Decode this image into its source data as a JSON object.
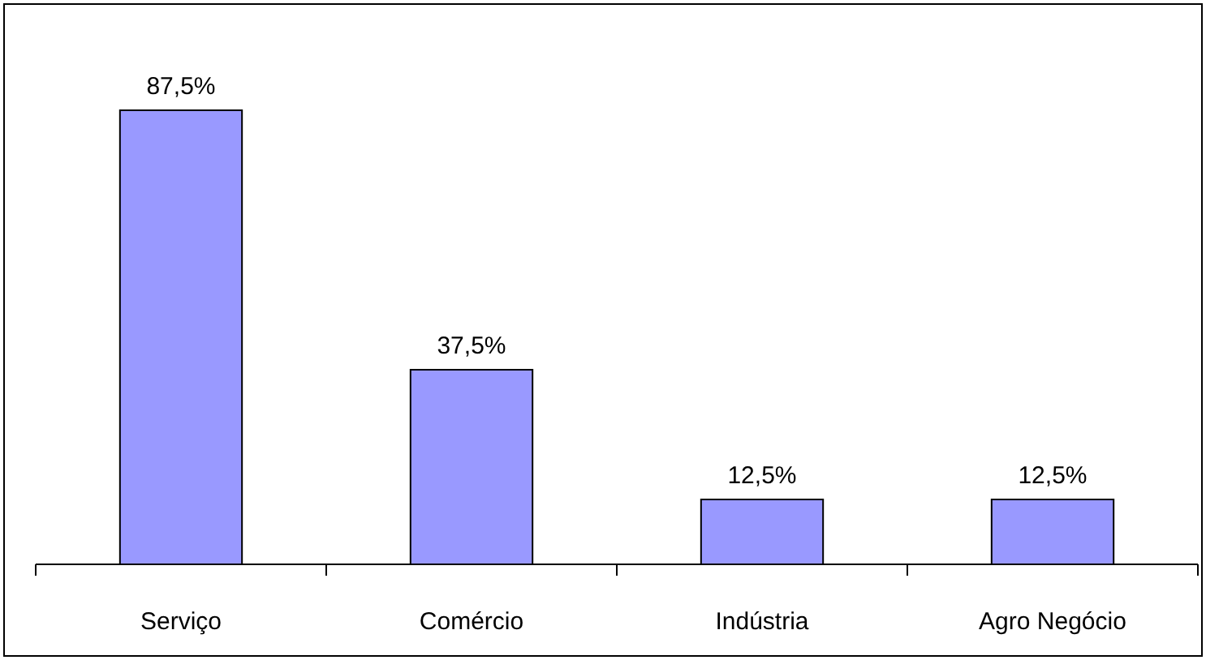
{
  "chart_data": {
    "type": "bar",
    "categories": [
      "Serviço",
      "Comércio",
      "Indústria",
      "Agro Negócio"
    ],
    "values": [
      87.5,
      37.5,
      12.5,
      12.5
    ],
    "value_labels": [
      "87,5%",
      "37,5%",
      "12,5%",
      "12,5%"
    ],
    "color": "#9999ff"
  }
}
